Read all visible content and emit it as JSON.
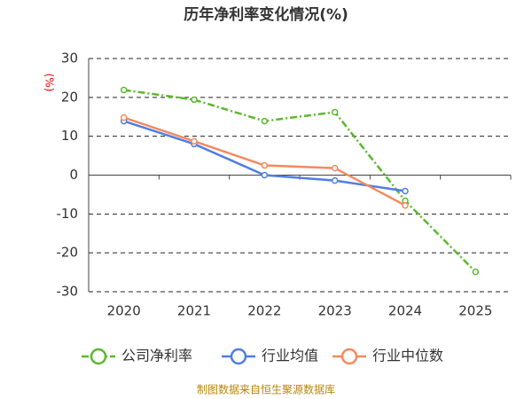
{
  "chart_data": {
    "type": "line",
    "title": "历年净利率变化情况(%)",
    "y_label": "(%)",
    "categories": [
      "2020",
      "2021",
      "2022",
      "2023",
      "2024",
      "2025"
    ],
    "series": [
      {
        "name": "公司净利率",
        "color": "#5cb82e",
        "line_style": "dashdot",
        "values": [
          21.9,
          19.4,
          13.9,
          16.2,
          -6.6,
          -24.9
        ]
      },
      {
        "name": "行业均值",
        "color": "#4f7ee0",
        "line_style": "solid",
        "values": [
          13.9,
          8.0,
          0.0,
          -1.4,
          -4.1,
          null
        ]
      },
      {
        "name": "行业中位数",
        "color": "#f5895e",
        "line_style": "solid",
        "values": [
          14.8,
          8.7,
          2.5,
          1.8,
          -7.8,
          null
        ]
      }
    ],
    "ylim": [
      -30,
      30
    ],
    "yticks": [
      -30,
      -20,
      -10,
      0,
      10,
      20,
      30
    ],
    "grid": true,
    "source": "制图数据来自恒生聚源数据库"
  }
}
